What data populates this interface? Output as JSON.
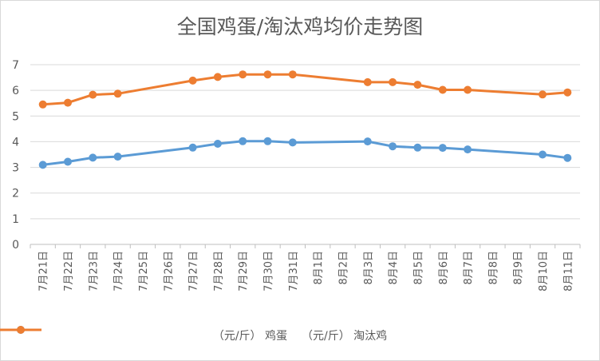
{
  "chart_data": {
    "type": "line",
    "title": "全国鸡蛋/淘汰鸡均价走势图",
    "categories": [
      "7月21日",
      "7月22日",
      "7月23日",
      "7月24日",
      "7月25日",
      "7月26日",
      "7月27日",
      "7月28日",
      "7月29日",
      "7月30日",
      "7月31日",
      "8月1日",
      "8月2日",
      "8月3日",
      "8月4日",
      "8月5日",
      "8月6日",
      "8月7日",
      "8月8日",
      "8月9日",
      "8月10日",
      "8月11日"
    ],
    "ylim": [
      0,
      7
    ],
    "yticks": [
      "0",
      "1",
      "2",
      "3",
      "4",
      "5",
      "6",
      "7"
    ],
    "grid": true,
    "legend_position": "bottom",
    "series": [
      {
        "name": "（元/斤） 鸡蛋",
        "color": "#5b9bd5",
        "values": [
          3.1,
          3.22,
          3.38,
          3.42,
          null,
          null,
          3.77,
          3.92,
          4.02,
          4.02,
          3.97,
          null,
          null,
          4.01,
          3.82,
          3.77,
          3.76,
          3.7,
          null,
          null,
          3.5,
          3.37
        ]
      },
      {
        "name": "（元/斤） 淘汰鸡",
        "color": "#ed7d31",
        "values": [
          5.45,
          5.52,
          5.83,
          5.87,
          null,
          null,
          6.38,
          6.52,
          6.62,
          6.62,
          6.62,
          null,
          null,
          6.32,
          6.32,
          6.22,
          6.02,
          6.02,
          null,
          null,
          5.84,
          5.92
        ]
      }
    ]
  }
}
